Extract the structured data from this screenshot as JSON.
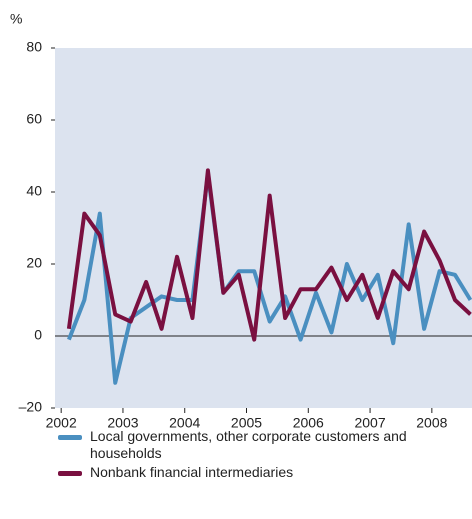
{
  "chart_data": {
    "type": "line",
    "y_unit": "%",
    "x": [
      2002.125,
      2002.375,
      2002.625,
      2002.875,
      2003.125,
      2003.375,
      2003.625,
      2003.875,
      2004.125,
      2004.375,
      2004.625,
      2004.875,
      2005.125,
      2005.375,
      2005.625,
      2005.875,
      2006.125,
      2006.375,
      2006.625,
      2006.875,
      2007.125,
      2007.375,
      2007.625,
      2007.875,
      2008.125,
      2008.375,
      2008.625
    ],
    "series": [
      {
        "name": "Local governments, other corporate customers and households",
        "color": "#4a8fc0",
        "values": [
          -1,
          10,
          34,
          -13,
          5,
          8,
          11,
          10,
          10,
          45,
          12,
          18,
          18,
          4,
          11,
          -1,
          12,
          1,
          20,
          10,
          17,
          -2,
          31,
          2,
          18,
          17,
          10
        ]
      },
      {
        "name": "Nonbank financial intermediaries",
        "color": "#7a1040",
        "values": [
          2,
          34,
          28,
          6,
          4,
          15,
          2,
          22,
          5,
          46,
          12,
          17,
          -1,
          39,
          5,
          13,
          13,
          19,
          10,
          17,
          5,
          18,
          13,
          29,
          21,
          10,
          6
        ]
      }
    ],
    "xlim": [
      2001.9,
      2008.65
    ],
    "xticks": [
      2002,
      2003,
      2004,
      2005,
      2006,
      2007,
      2008
    ],
    "ylim": [
      -20,
      80
    ],
    "yticks": [
      {
        "value": -20,
        "label": "–20"
      },
      0,
      20,
      40,
      60,
      80
    ],
    "background": "#dce3ef"
  }
}
